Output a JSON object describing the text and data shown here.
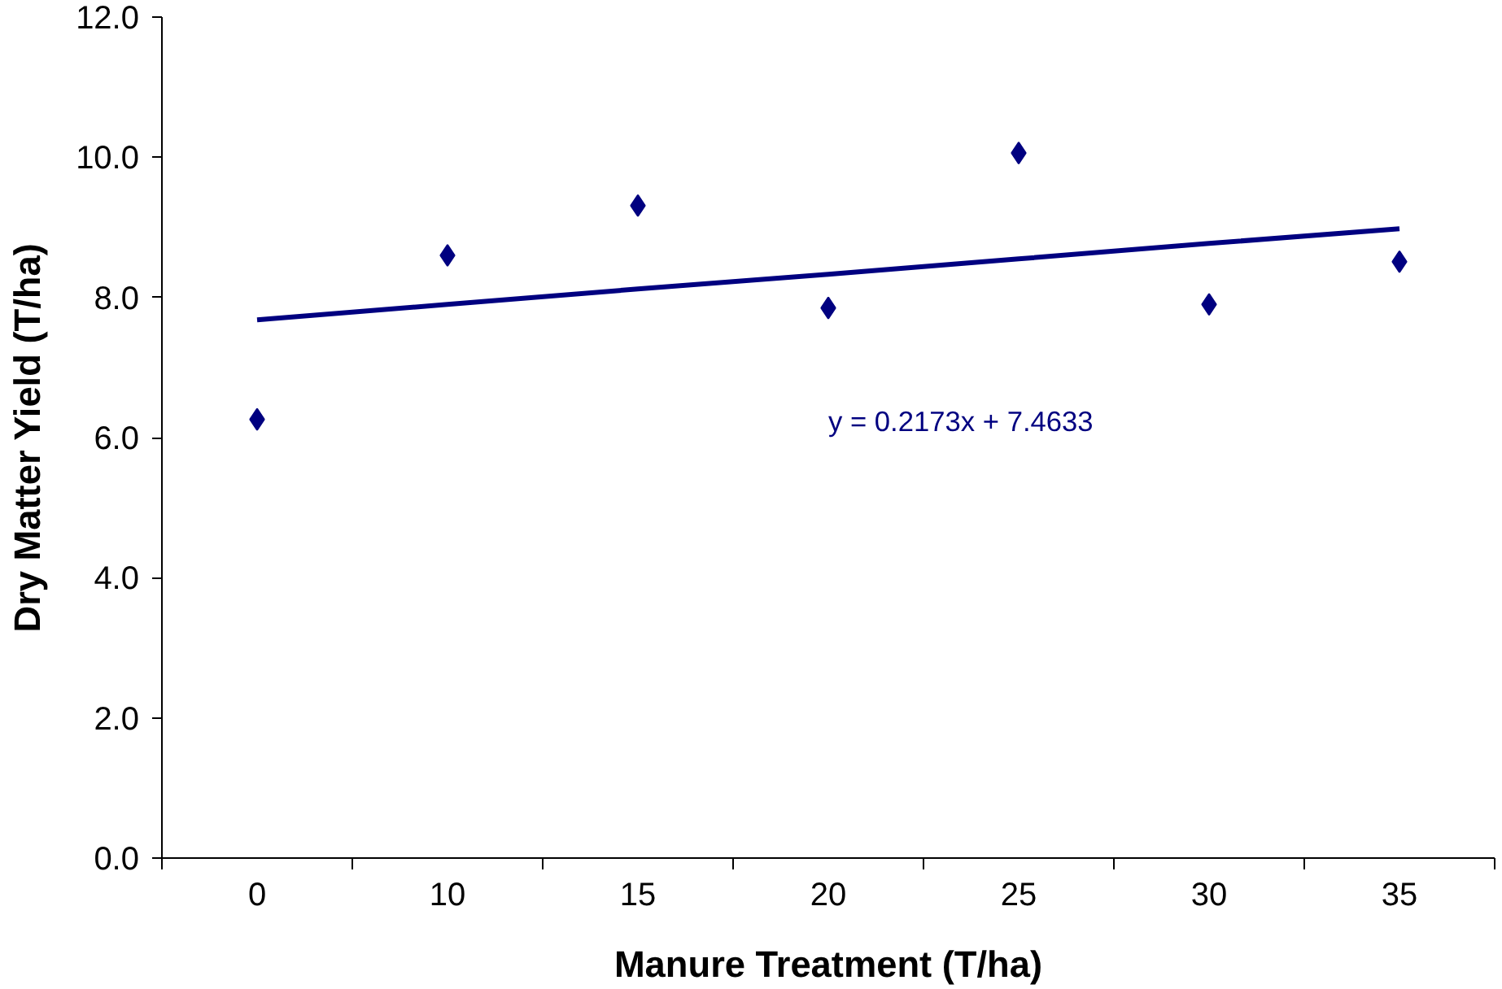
{
  "chart_data": {
    "type": "scatter",
    "xlabel": "Manure Treatment (T/ha)",
    "ylabel": "Dry Matter Yield (T/ha)",
    "categories": [
      "0",
      "10",
      "15",
      "20",
      "25",
      "30",
      "35"
    ],
    "series": [
      {
        "color": "#000080",
        "marker": "diamond",
        "values": [
          6.26,
          8.6,
          9.31,
          7.85,
          10.06,
          7.9,
          8.51
        ]
      },
      {
        "type": "line",
        "color": "#000080",
        "marker": "none",
        "line_style": "solid",
        "values": [
          7.68,
          7.9,
          8.12,
          8.33,
          8.55,
          8.77,
          8.98
        ]
      }
    ],
    "ylim": [
      0,
      12
    ],
    "yticks": [
      {
        "value": 0,
        "label": "0.0"
      },
      {
        "value": 2,
        "label": "2.0"
      },
      {
        "value": 4,
        "label": "4.0"
      },
      {
        "value": 6,
        "label": "6.0"
      },
      {
        "value": 8,
        "label": "8.0"
      },
      {
        "value": 10,
        "label": "10.0"
      },
      {
        "value": 12,
        "label": "12.0"
      }
    ],
    "annotations": [
      "y = 0.2173x + 7.4633"
    ],
    "grid": false
  }
}
